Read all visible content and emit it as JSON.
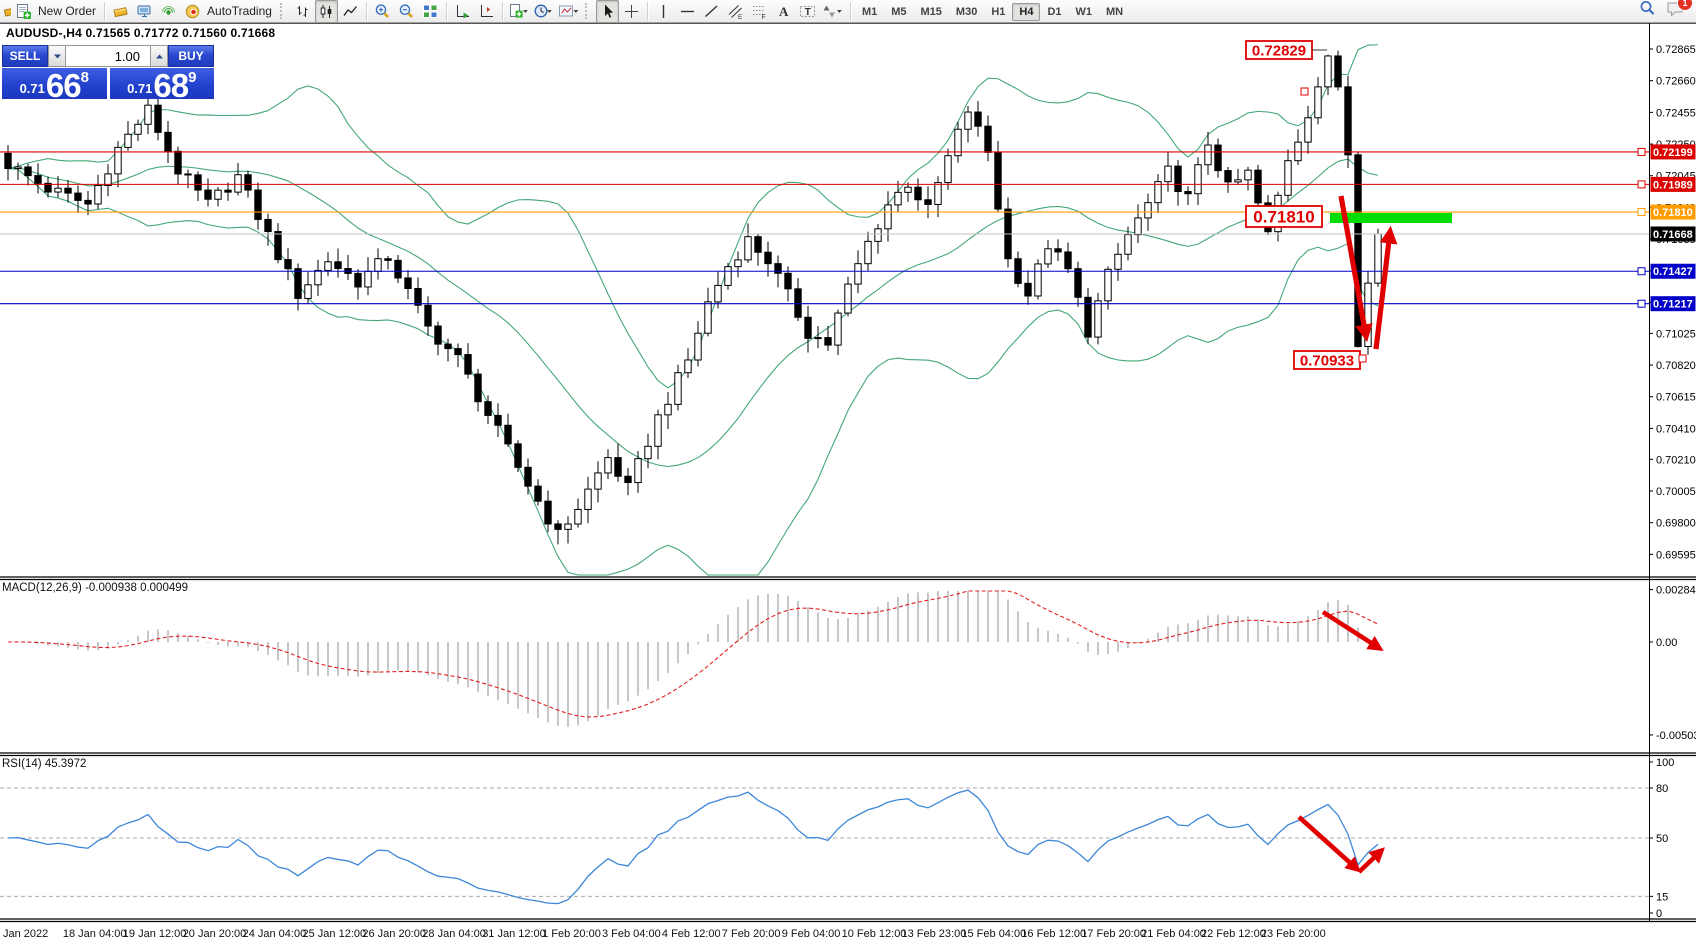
{
  "toolbar": {
    "new_order": "New Order",
    "autotrading": "AutoTrading",
    "timeframes": [
      "M1",
      "M5",
      "M15",
      "M30",
      "H1",
      "H4",
      "D1",
      "W1",
      "MN"
    ],
    "active_timeframe": "H4",
    "notification_badge": "1",
    "icons": [
      "chart-icon",
      "new-order-icon",
      "gold-bars-icon",
      "terminal-icon",
      "signals-icon",
      "autotrading-icon",
      "bar-chart-icon",
      "candlestick-chart-icon",
      "line-chart-icon",
      "zoom-in-icon",
      "zoom-out-icon",
      "tile-windows-icon",
      "auto-scroll-icon",
      "chart-shift-icon",
      "templates-icon",
      "periods-icon",
      "indicators-icon",
      "cursor-icon",
      "crosshair-icon",
      "vertical-line-icon",
      "horizontal-line-icon",
      "trendline-icon",
      "channel-icon",
      "fibonacci-icon",
      "text-icon",
      "text-label-icon",
      "arrows-icon",
      "search-icon",
      "chat-icon"
    ]
  },
  "chart_header": {
    "ohlc_title": "AUDUSD-,H4 0.71565 0.71772 0.71560 0.71668"
  },
  "trade_panel": {
    "sell_label": "SELL",
    "buy_label": "BUY",
    "volume": "1.00",
    "sell_price_prefix": "0.71",
    "sell_price_big": "66",
    "sell_price_sup": "8",
    "buy_price_prefix": "0.71",
    "buy_price_big": "68",
    "buy_price_sup": "9"
  },
  "chart_data": {
    "type": "candlestick",
    "symbol": "AUDUSD-",
    "period": "H4",
    "ohlc": {
      "open": "0.71565",
      "high": "0.71772",
      "low": "0.71560",
      "close": "0.71668"
    },
    "y_ticks": [
      "0.72865",
      "0.72660",
      "0.72455",
      "0.72250",
      "0.72045",
      "0.71840",
      "0.71635",
      "0.71430",
      "0.71225",
      "0.71025",
      "0.70820",
      "0.70615",
      "0.70410",
      "0.70210",
      "0.70005",
      "0.69800",
      "0.69595"
    ],
    "x_labels": [
      "Jan 2022",
      "18 Jan 04:00",
      "19 Jan 12:00",
      "20 Jan 20:00",
      "24 Jan 04:00",
      "25 Jan 12:00",
      "26 Jan 20:00",
      "28 Jan 04:00",
      "31 Jan 12:00",
      "1 Feb 20:00",
      "3 Feb 04:00",
      "4 Feb 12:00",
      "7 Feb 20:00",
      "9 Feb 04:00",
      "10 Feb 12:00",
      "13 Feb 23:00",
      "15 Feb 04:00",
      "16 Feb 12:00",
      "17 Feb 20:00",
      "21 Feb 04:00",
      "22 Feb 12:00",
      "23 Feb 20:00"
    ],
    "levels": [
      {
        "price": 0.72199,
        "label": "0.72199",
        "color": "#dd0000",
        "tag_bg": "#dd0000",
        "end_square": true
      },
      {
        "price": 0.71989,
        "label": "0.71989",
        "color": "#dd0000",
        "tag_bg": "#dd0000",
        "end_square": true
      },
      {
        "price": 0.7181,
        "label": "0.71810",
        "color": "#ff9c00",
        "tag_bg": "#ff9c00",
        "end_square": true
      },
      {
        "price": 0.71668,
        "label": "0.71668",
        "color": "#c0c0c0",
        "tag_bg": "#000000",
        "end_square": false
      },
      {
        "price": 0.71427,
        "label": "0.71427",
        "color": "#0000c8",
        "tag_bg": "#0000c8",
        "end_square": true
      },
      {
        "price": 0.71217,
        "label": "0.71217",
        "color": "#0000c8",
        "tag_bg": "#0000c8",
        "end_square": true
      }
    ],
    "price_anchors": [
      [
        0,
        0.7212
      ],
      [
        4,
        0.7196
      ],
      [
        8,
        0.7186
      ],
      [
        11,
        0.7222
      ],
      [
        14,
        0.7247
      ],
      [
        17,
        0.7208
      ],
      [
        20,
        0.7186
      ],
      [
        23,
        0.7204
      ],
      [
        26,
        0.7166
      ],
      [
        29,
        0.7128
      ],
      [
        32,
        0.715
      ],
      [
        35,
        0.7136
      ],
      [
        38,
        0.7152
      ],
      [
        42,
        0.7106
      ],
      [
        45,
        0.7086
      ],
      [
        48,
        0.705
      ],
      [
        51,
        0.7016
      ],
      [
        55,
        0.6972
      ],
      [
        57,
        0.699
      ],
      [
        60,
        0.7022
      ],
      [
        62,
        0.7002
      ],
      [
        65,
        0.7048
      ],
      [
        68,
        0.7085
      ],
      [
        70,
        0.7122
      ],
      [
        72,
        0.7146
      ],
      [
        74,
        0.7163
      ],
      [
        76,
        0.715
      ],
      [
        78,
        0.7127
      ],
      [
        80,
        0.7103
      ],
      [
        82,
        0.7096
      ],
      [
        84,
        0.7132
      ],
      [
        86,
        0.7161
      ],
      [
        88,
        0.7186
      ],
      [
        90,
        0.72
      ],
      [
        92,
        0.7182
      ],
      [
        94,
        0.7216
      ],
      [
        96,
        0.7247
      ],
      [
        98,
        0.722
      ],
      [
        100,
        0.715
      ],
      [
        102,
        0.7128
      ],
      [
        104,
        0.716
      ],
      [
        106,
        0.7143
      ],
      [
        108,
        0.7104
      ],
      [
        110,
        0.714
      ],
      [
        112,
        0.7166
      ],
      [
        114,
        0.7186
      ],
      [
        116,
        0.7207
      ],
      [
        118,
        0.719
      ],
      [
        120,
        0.7226
      ],
      [
        122,
        0.7196
      ],
      [
        124,
        0.7206
      ],
      [
        126,
        0.7166
      ],
      [
        128,
        0.7216
      ],
      [
        130,
        0.7242
      ],
      [
        132,
        0.7282
      ],
      [
        133,
        0.7262
      ],
      [
        134,
        0.7218
      ],
      [
        135,
        0.7094
      ],
      [
        136,
        0.7135
      ],
      [
        137,
        0.71668
      ]
    ],
    "annotations": {
      "high_label": "0.72829",
      "support_label": "0.71810",
      "low_label": "0.70933",
      "accent": "#e00000",
      "green_bar_color": "#00dd00",
      "swing_high": 0.72829,
      "swing_low": 0.70933
    },
    "indicators": {
      "bollinger": {
        "period": 20,
        "deviation": 2,
        "color": "#44a877"
      },
      "macd": {
        "label": "MACD(12,26,9) -0.000938 0.000499",
        "fast": 12,
        "slow": 26,
        "signal": 9,
        "value": -0.000938,
        "signal_value": 0.000499,
        "axis_ticks": [
          "0.002841",
          "0.00",
          "-0.005032"
        ]
      },
      "rsi": {
        "label": "RSI(14) 45.3972",
        "period": 14,
        "value": 45.3972,
        "levels": [
          80,
          50,
          15
        ],
        "axis_ticks": [
          "100",
          "80",
          "50",
          "15",
          "0"
        ]
      }
    }
  }
}
